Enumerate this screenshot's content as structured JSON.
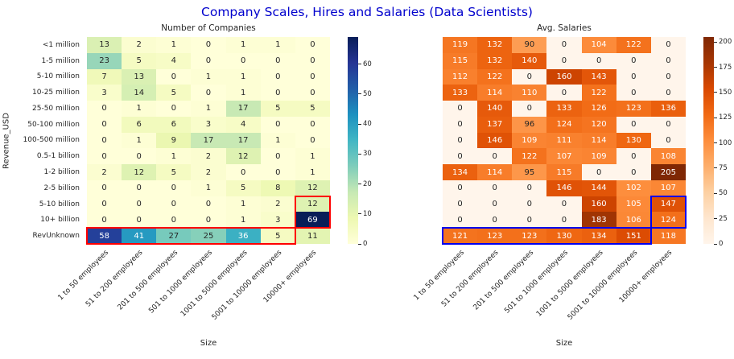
{
  "title": "Company Scales, Hires and Salaries (Data Scientists)",
  "title_color": "#0000CD",
  "chart_data": [
    {
      "type": "heatmap",
      "title": "Number of Companies",
      "xlabel": "Size",
      "ylabel": "Revenue_USD",
      "colormap": "YlGnBu",
      "vmin": 0,
      "vmax": 69,
      "colorbar_ticks": [
        0,
        10,
        20,
        30,
        40,
        50,
        60
      ],
      "rows": [
        "<1 million",
        "1-5 million",
        "5-10 million",
        "10-25 million",
        "25-50 million",
        "50-100 million",
        "100-500 million",
        "0.5-1 billion",
        "1-2 billion",
        "2-5 billion",
        "5-10 billion",
        "10+ billion",
        "RevUnknown"
      ],
      "columns": [
        "1 to 50 employees",
        "51 to 200 employees",
        "201 to 500 employees",
        "501 to 1000 employees",
        "1001 to 5000 employees",
        "5001 to 10000 employees",
        "10000+ employees"
      ],
      "values": [
        [
          13,
          2,
          1,
          0,
          1,
          1,
          0
        ],
        [
          23,
          5,
          4,
          0,
          0,
          0,
          0
        ],
        [
          7,
          13,
          0,
          1,
          1,
          0,
          0
        ],
        [
          3,
          14,
          5,
          0,
          1,
          0,
          0
        ],
        [
          0,
          1,
          0,
          1,
          17,
          5,
          5
        ],
        [
          0,
          6,
          6,
          3,
          4,
          0,
          0
        ],
        [
          0,
          1,
          9,
          17,
          17,
          1,
          0
        ],
        [
          0,
          0,
          1,
          2,
          12,
          0,
          1
        ],
        [
          2,
          12,
          5,
          2,
          0,
          0,
          1
        ],
        [
          0,
          0,
          0,
          1,
          5,
          8,
          12
        ],
        [
          0,
          0,
          0,
          0,
          1,
          2,
          12
        ],
        [
          0,
          0,
          0,
          0,
          1,
          3,
          69
        ],
        [
          58,
          41,
          27,
          25,
          36,
          5,
          11
        ]
      ],
      "annotations": [
        {
          "shape": "rect",
          "color": "#ff0000",
          "row_start": 10,
          "row_end": 11,
          "col_start": 6,
          "col_end": 6
        },
        {
          "shape": "rect",
          "color": "#ff0000",
          "row_start": 12,
          "row_end": 12,
          "col_start": 0,
          "col_end": 5
        }
      ]
    },
    {
      "type": "heatmap",
      "title": "Avg. Salaries",
      "xlabel": "Size",
      "ylabel": "",
      "colormap": "Oranges",
      "vmin": 0,
      "vmax": 205,
      "colorbar_ticks": [
        0,
        25,
        50,
        75,
        100,
        125,
        150,
        175,
        200
      ],
      "rows": [
        "<1 million",
        "1-5 million",
        "5-10 million",
        "10-25 million",
        "25-50 million",
        "50-100 million",
        "100-500 million",
        "0.5-1 billion",
        "1-2 billion",
        "2-5 billion",
        "5-10 billion",
        "10+ billion",
        "RevUnknown"
      ],
      "columns": [
        "1 to 50 employees",
        "51 to 200 employees",
        "201 to 500 employees",
        "501 to 1000 employees",
        "1001 to 5000 employees",
        "5001 to 10000 employees",
        "10000+ employees"
      ],
      "values": [
        [
          119,
          132,
          90,
          0,
          104,
          122,
          0
        ],
        [
          115,
          132,
          140,
          0,
          0,
          0,
          0
        ],
        [
          112,
          122,
          0,
          160,
          143,
          0,
          0
        ],
        [
          133,
          114,
          110,
          0,
          122,
          0,
          0
        ],
        [
          0,
          140,
          0,
          133,
          126,
          123,
          136
        ],
        [
          0,
          137,
          96,
          124,
          120,
          0,
          0
        ],
        [
          0,
          146,
          109,
          111,
          114,
          130,
          0
        ],
        [
          0,
          0,
          122,
          107,
          109,
          0,
          108
        ],
        [
          134,
          114,
          95,
          115,
          0,
          0,
          205
        ],
        [
          0,
          0,
          0,
          146,
          144,
          102,
          107
        ],
        [
          0,
          0,
          0,
          0,
          160,
          105,
          147
        ],
        [
          0,
          0,
          0,
          0,
          183,
          106,
          124
        ],
        [
          121,
          123,
          123,
          130,
          134,
          151,
          118
        ]
      ],
      "annotations": [
        {
          "shape": "rect",
          "color": "#0000ee",
          "row_start": 10,
          "row_end": 11,
          "col_start": 6,
          "col_end": 6
        },
        {
          "shape": "rect",
          "color": "#0000ee",
          "row_start": 12,
          "row_end": 12,
          "col_start": 0,
          "col_end": 5
        }
      ]
    }
  ]
}
